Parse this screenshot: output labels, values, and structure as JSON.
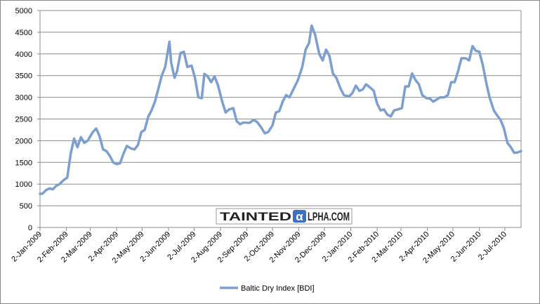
{
  "chart_data": {
    "type": "line",
    "logo": [
      "TAINTED",
      "α",
      "LPHA.COM"
    ],
    "x": [
      "2009-01-02",
      "2009-01-05",
      "2009-01-09",
      "2009-01-13",
      "2009-01-17",
      "2009-01-21",
      "2009-01-25",
      "2009-01-29",
      "2009-02-03",
      "2009-02-07",
      "2009-02-11",
      "2009-02-15",
      "2009-02-19",
      "2009-02-23",
      "2009-02-27",
      "2009-03-05",
      "2009-03-09",
      "2009-03-13",
      "2009-03-17",
      "2009-03-21",
      "2009-03-25",
      "2009-03-29",
      "2009-04-02",
      "2009-04-06",
      "2009-04-10",
      "2009-04-14",
      "2009-04-19",
      "2009-04-23",
      "2009-04-27",
      "2009-05-01",
      "2009-05-05",
      "2009-05-09",
      "2009-05-13",
      "2009-05-17",
      "2009-05-25",
      "2009-05-29",
      "2009-06-03",
      "2009-06-05",
      "2009-06-09",
      "2009-06-12",
      "2009-06-16",
      "2009-06-20",
      "2009-06-24",
      "2009-06-29",
      "2009-07-03",
      "2009-07-07",
      "2009-07-11",
      "2009-07-14",
      "2009-07-18",
      "2009-07-22",
      "2009-07-26",
      "2009-07-30",
      "2009-08-04",
      "2009-08-08",
      "2009-08-12",
      "2009-08-17",
      "2009-08-21",
      "2009-08-25",
      "2009-08-29",
      "2009-09-05",
      "2009-09-10",
      "2009-09-14",
      "2009-09-19",
      "2009-09-23",
      "2009-09-27",
      "2009-10-02",
      "2009-10-06",
      "2009-10-10",
      "2009-10-14",
      "2009-10-18",
      "2009-10-22",
      "2009-10-27",
      "2009-11-01",
      "2009-11-06",
      "2009-11-10",
      "2009-11-14",
      "2009-11-17",
      "2009-11-21",
      "2009-11-26",
      "2009-11-30",
      "2009-12-04",
      "2009-12-08",
      "2009-12-12",
      "2009-12-16",
      "2009-12-21",
      "2009-12-25",
      "2009-12-31",
      "2010-01-04",
      "2010-01-08",
      "2010-01-12",
      "2010-01-16",
      "2010-01-20",
      "2010-01-25",
      "2010-01-29",
      "2010-02-02",
      "2010-02-06",
      "2010-02-10",
      "2010-02-14",
      "2010-02-18",
      "2010-02-22",
      "2010-02-26",
      "2010-03-03",
      "2010-03-07",
      "2010-03-11",
      "2010-03-15",
      "2010-03-19",
      "2010-03-23",
      "2010-03-27",
      "2010-04-01",
      "2010-04-05",
      "2010-04-09",
      "2010-04-13",
      "2010-04-17",
      "2010-04-22",
      "2010-04-26",
      "2010-04-30",
      "2010-05-04",
      "2010-05-08",
      "2010-05-12",
      "2010-05-17",
      "2010-05-21",
      "2010-05-25",
      "2010-05-29",
      "2010-06-02",
      "2010-06-06",
      "2010-06-10",
      "2010-06-14",
      "2010-06-19",
      "2010-06-23",
      "2010-06-27",
      "2010-07-01",
      "2010-07-05",
      "2010-07-09",
      "2010-07-13",
      "2010-07-17",
      "2010-07-21"
    ],
    "series": [
      {
        "name": "Baltic Dry Index [BDI]",
        "color": "#7b9fd1",
        "values": [
          774,
          780,
          860,
          900,
          880,
          960,
          1000,
          1080,
          1150,
          1700,
          2050,
          1850,
          2080,
          1950,
          2000,
          2200,
          2280,
          2100,
          1800,
          1760,
          1650,
          1500,
          1460,
          1480,
          1700,
          1880,
          1820,
          1800,
          1900,
          2200,
          2250,
          2550,
          2700,
          2900,
          3500,
          3700,
          4280,
          3800,
          3450,
          3600,
          4020,
          4050,
          3700,
          3730,
          3450,
          3000,
          2980,
          3540,
          3480,
          3350,
          3480,
          3280,
          2900,
          2650,
          2720,
          2750,
          2450,
          2380,
          2420,
          2410,
          2480,
          2430,
          2300,
          2170,
          2200,
          2350,
          2650,
          2680,
          2900,
          3050,
          3000,
          3200,
          3400,
          3700,
          4100,
          4250,
          4650,
          4450,
          4000,
          3850,
          4100,
          3950,
          3550,
          3450,
          3200,
          3050,
          3020,
          3100,
          3270,
          3150,
          3180,
          3300,
          3220,
          3150,
          2850,
          2700,
          2720,
          2600,
          2560,
          2700,
          2720,
          2750,
          3250,
          3250,
          3550,
          3400,
          3300,
          3050,
          2980,
          2970,
          2900,
          2950,
          3000,
          3000,
          3050,
          3350,
          3350,
          3600,
          3900,
          3900,
          3850,
          4180,
          4070,
          4050,
          3750,
          3350,
          3000,
          2700,
          2580,
          2480,
          2280,
          1950,
          1850,
          1720,
          1730,
          1760
        ]
      }
    ],
    "xlim": [
      "2009-01-02",
      "2010-07-21"
    ],
    "xticks": [
      {
        "value": "2009-01-02",
        "label": "2-Jan-2009"
      },
      {
        "value": "2009-02-02",
        "label": "2-Feb-2009"
      },
      {
        "value": "2009-03-02",
        "label": "2-Mar-2009"
      },
      {
        "value": "2009-04-02",
        "label": "2-Apr-2009"
      },
      {
        "value": "2009-05-02",
        "label": "2-May-2009"
      },
      {
        "value": "2009-06-02",
        "label": "2-Jun-2009"
      },
      {
        "value": "2009-07-02",
        "label": "2-Jul-2009"
      },
      {
        "value": "2009-08-02",
        "label": "2-Aug-2009"
      },
      {
        "value": "2009-09-02",
        "label": "2-Sep-2009"
      },
      {
        "value": "2009-10-02",
        "label": "2-Oct-2009"
      },
      {
        "value": "2009-11-02",
        "label": "2-Nov-2009"
      },
      {
        "value": "2009-12-02",
        "label": "2-Dec-2009"
      },
      {
        "value": "2010-01-02",
        "label": "2-Jan-2010"
      },
      {
        "value": "2010-02-02",
        "label": "2-Feb-2010"
      },
      {
        "value": "2010-03-02",
        "label": "2-Mar-2010"
      },
      {
        "value": "2010-04-02",
        "label": "2-Apr-2010"
      },
      {
        "value": "2010-05-02",
        "label": "2-May-2010"
      },
      {
        "value": "2010-06-02",
        "label": "2-Jun-2010"
      },
      {
        "value": "2010-07-02",
        "label": "2-Jul-2010"
      }
    ],
    "ylim": [
      0,
      5000
    ],
    "yticks": [
      0,
      500,
      1000,
      1500,
      2000,
      2500,
      3000,
      3500,
      4000,
      4500,
      5000
    ],
    "grid": true,
    "legend": "bottom"
  }
}
